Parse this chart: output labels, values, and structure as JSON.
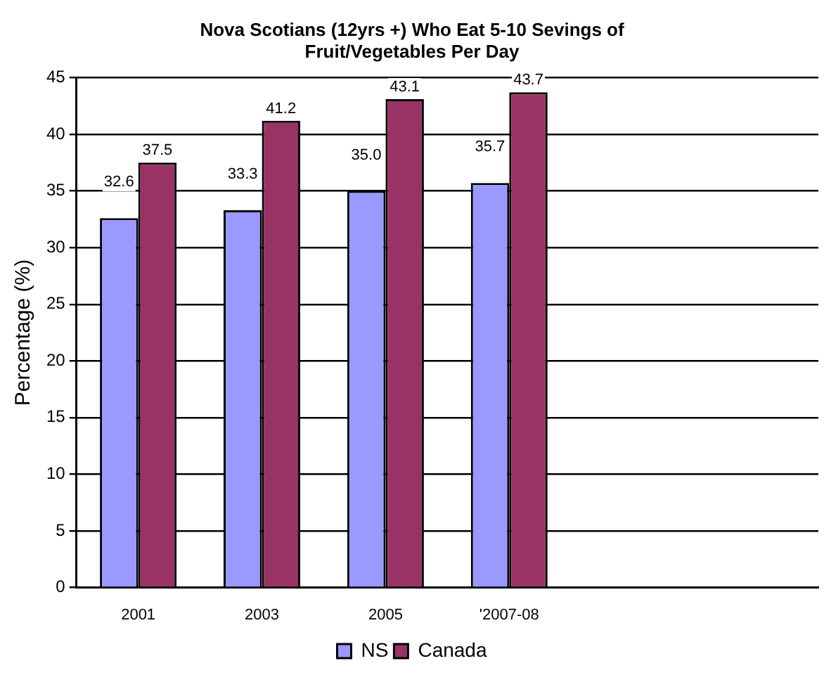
{
  "chart_data": {
    "type": "bar",
    "title": "Nova Scotians (12yrs +) Who Eat 5-10 Sevings of Fruit/Vegetables Per Day",
    "ylabel": "Percentage (%)",
    "categories": [
      "2001",
      "2003",
      "2005",
      "'2007-08",
      null,
      null
    ],
    "series": [
      {
        "name": "NS",
        "color": "#9999ff",
        "values": [
          32.6,
          33.3,
          35.0,
          35.7,
          null,
          null
        ],
        "value_labels": [
          "32.6",
          "33.3",
          "35.0",
          "35.7",
          null,
          null
        ]
      },
      {
        "name": "Canada",
        "color": "#993366",
        "values": [
          37.5,
          41.2,
          43.1,
          43.7,
          null,
          null
        ],
        "value_labels": [
          "37.5",
          "41.2",
          "43.1",
          "43.7",
          null,
          null
        ]
      }
    ],
    "ylim": [
      0,
      45
    ],
    "yticks": [
      0,
      5,
      10,
      15,
      20,
      25,
      30,
      35,
      40,
      45
    ],
    "grid": "y",
    "legend": "bottom"
  }
}
